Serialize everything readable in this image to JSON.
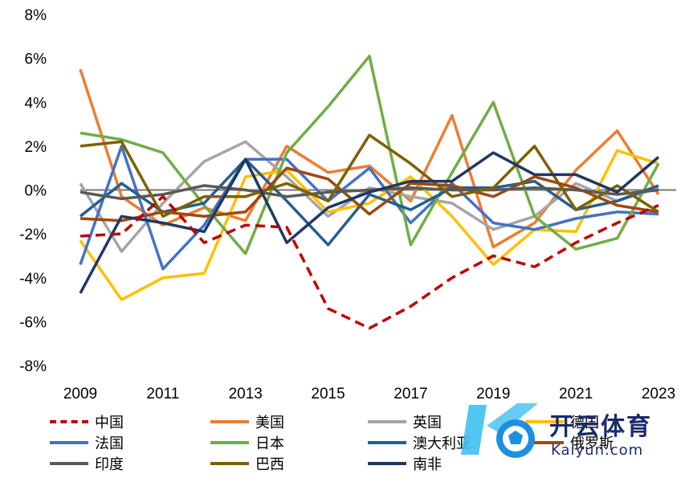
{
  "chart_data": {
    "type": "line",
    "x": [
      2009,
      2010,
      2011,
      2012,
      2013,
      2014,
      2015,
      2016,
      2017,
      2018,
      2019,
      2020,
      2021,
      2022,
      2023
    ],
    "x_tick_labels": [
      "2009",
      "2011",
      "2013",
      "2015",
      "2017",
      "2019",
      "2021",
      "2023"
    ],
    "y_tick_labels": [
      "8%",
      "6%",
      "4%",
      "2%",
      "0%",
      "-2%",
      "-4%",
      "-6%",
      "-8%"
    ],
    "ylim": [
      -8,
      8
    ],
    "unit": "%",
    "legend_position": "bottom",
    "series": [
      {
        "name": "中国",
        "color": "#c00000",
        "dashed": true,
        "values": [
          -2.1,
          -2.0,
          -0.3,
          -2.4,
          -1.6,
          -1.7,
          -5.4,
          -6.3,
          -5.3,
          -4.0,
          -3.0,
          -3.5,
          -2.4,
          -1.5,
          -0.7
        ]
      },
      {
        "name": "美国",
        "color": "#ed7d31",
        "values": [
          5.5,
          -0.3,
          -1.6,
          -0.8,
          -1.4,
          2.0,
          0.8,
          1.1,
          -0.5,
          3.4,
          -2.6,
          -1.5,
          0.9,
          2.7,
          -0.2
        ]
      },
      {
        "name": "英国",
        "color": "#a5a5a5",
        "values": [
          0.3,
          -2.8,
          -0.6,
          1.3,
          2.2,
          0.6,
          -1.2,
          0.1,
          -0.3,
          -0.6,
          -1.8,
          -1.2,
          0.3,
          -0.5,
          0.1
        ]
      },
      {
        "name": "德国",
        "color": "#ffc000",
        "values": [
          -2.3,
          -5.0,
          -4.0,
          -3.8,
          0.6,
          0.9,
          -1.0,
          -0.6,
          0.6,
          -1.2,
          -3.4,
          -1.8,
          -1.9,
          1.8,
          1.2
        ]
      },
      {
        "name": "法国",
        "color": "#4472c4",
        "values": [
          -3.4,
          2.0,
          -3.6,
          -1.6,
          1.4,
          1.4,
          -0.5,
          1.0,
          -1.5,
          0.3,
          -1.5,
          -1.8,
          -1.3,
          -1.0,
          -1.1
        ]
      },
      {
        "name": "日本",
        "color": "#70ad47",
        "values": [
          2.6,
          2.3,
          1.7,
          -0.7,
          -2.9,
          1.7,
          3.8,
          6.1,
          -2.5,
          0.8,
          4.0,
          -1.2,
          -2.7,
          -2.2,
          1.2
        ]
      },
      {
        "name": "澳大利亚",
        "color": "#255e91",
        "values": [
          -1.2,
          0.3,
          -1.0,
          -0.6,
          1.4,
          -0.5,
          -2.5,
          -0.2,
          -0.9,
          0.1,
          0.1,
          0.4,
          -0.9,
          -0.5,
          0.2
        ]
      },
      {
        "name": "俄罗斯",
        "color": "#9e480e",
        "values": [
          -1.3,
          -1.4,
          -1.0,
          -1.2,
          -1.0,
          1.0,
          0.5,
          -1.1,
          0.3,
          0.2,
          -0.3,
          0.6,
          0.1,
          -0.7,
          -1.0
        ]
      },
      {
        "name": "印度",
        "color": "#595959",
        "values": [
          -0.1,
          -0.4,
          -0.2,
          0.2,
          0.0,
          -0.3,
          -0.1,
          0.0,
          0.1,
          0.0,
          0.0,
          0.1,
          0.0,
          -0.2,
          0.0
        ]
      },
      {
        "name": "巴西",
        "color": "#7f6000",
        "values": [
          2.0,
          2.2,
          -1.2,
          -0.3,
          -0.3,
          0.3,
          -0.5,
          2.5,
          1.2,
          -0.3,
          0.1,
          2.0,
          -0.9,
          0.2,
          -1.0
        ]
      },
      {
        "name": "南非",
        "color": "#203864",
        "values": [
          -4.7,
          -1.2,
          -1.5,
          -1.9,
          1.4,
          -2.4,
          -0.8,
          -0.1,
          0.4,
          0.4,
          1.7,
          0.7,
          0.7,
          -0.1,
          1.5
        ]
      }
    ]
  },
  "watermark": {
    "brand": "开云体育",
    "url": "Kaiyun.com"
  }
}
